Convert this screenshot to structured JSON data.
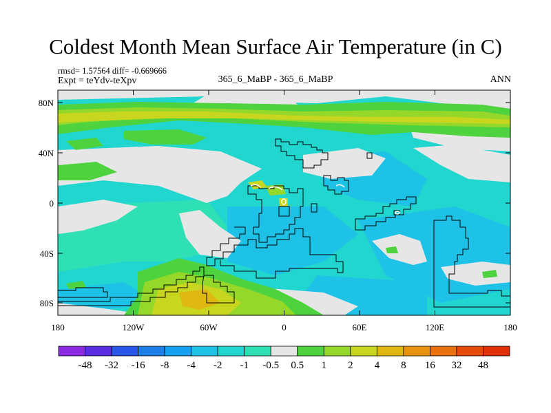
{
  "title": "Coldest Month Mean Surface Air Temperature (in C)",
  "stats_line": "rmsd= 1.57564 diff= -0.669666",
  "expt_line": "Expt = teYdv-teXpv",
  "center_label": "365_6_MaBP - 365_6_MaBP",
  "season_label": "ANN",
  "lat_labels": [
    "80N",
    "40N",
    "0",
    "40S",
    "80S"
  ],
  "lon_labels": [
    "180",
    "120W",
    "60W",
    "0",
    "60E",
    "120E",
    "180"
  ],
  "colorbar": {
    "labels": [
      "-48",
      "-32",
      "-16",
      "-8",
      "-4",
      "-2",
      "-1",
      "-0.5",
      "0.5",
      "1",
      "2",
      "4",
      "8",
      "16",
      "32",
      "48"
    ],
    "colors": [
      "#8a2be2",
      "#5a2ee0",
      "#2a55e8",
      "#1e7ee8",
      "#16a0f0",
      "#1ec2e6",
      "#22d6d0",
      "#2ee0b4",
      "#e6e6e6",
      "#4ed23e",
      "#96d82a",
      "#c8d620",
      "#e0b814",
      "#e89412",
      "#e8700e",
      "#e44a0a",
      "#e0300a"
    ]
  },
  "palette": {
    "land_outline": "#000000",
    "frame": "#000000"
  }
}
